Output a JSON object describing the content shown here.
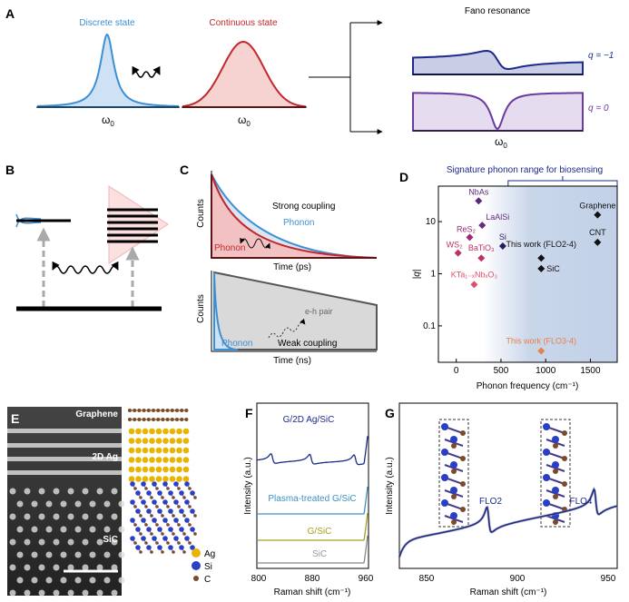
{
  "panels": {
    "a": "A",
    "b": "B",
    "c": "C",
    "d": "D",
    "e": "E",
    "f": "F",
    "g": "G"
  },
  "panel_a": {
    "discrete": "Discrete state",
    "continuous": "Continuous state",
    "fano": "Fano resonance",
    "omega": "ω",
    "omega_sub": "0",
    "q1": "q = −1",
    "q0": "q = 0"
  },
  "panel_c": {
    "strong": "Strong coupling",
    "phonon": "Phonon",
    "counts": "Counts",
    "time_ps": "Time (ps)",
    "time_ns": "Time (ns)",
    "eh": "e-h pair",
    "weak": "Weak coupling"
  },
  "panel_e": {
    "graphene": "Graphene",
    "ag": "2D Ag",
    "sic": "SiC",
    "legend": [
      "Ag",
      "Si",
      "C"
    ]
  },
  "colors": {
    "blue": "#3d8fd4",
    "red": "#c0282d",
    "navy": "#1b2a8c",
    "purple": "#6a3a9c",
    "shade": "#c9d6ea",
    "ag": "#e8b400",
    "si": "#2b3fc4",
    "c": "#7a4a2a"
  },
  "chart_data": [
    {
      "type": "scatter",
      "panel": "D",
      "title": "Signature phonon range for biosensing",
      "xlabel": "Phonon frequency (cm⁻¹)",
      "ylabel": "|q|",
      "xlim": [
        -200,
        1800
      ],
      "ylim": [
        0.02,
        48
      ],
      "yscale": "log",
      "xticks": [
        "0",
        "500",
        "1000",
        "1500"
      ],
      "yticks": [
        "0.1",
        "1",
        "10"
      ],
      "shaded_range": [
        580,
        1800
      ],
      "points": [
        {
          "label": "NbAs",
          "x": 250,
          "y": 25,
          "color": "#5a2a7a"
        },
        {
          "label": "LaAlSi",
          "x": 290,
          "y": 8.5,
          "color": "#6a2a80"
        },
        {
          "label": "ReS₂",
          "x": 150,
          "y": 5,
          "color": "#a0287a"
        },
        {
          "label": "Si",
          "x": 520,
          "y": 3.4,
          "color": "#2a1a5a"
        },
        {
          "label": "WS₂",
          "x": 20,
          "y": 2.5,
          "color": "#c0306a"
        },
        {
          "label": "BaTiO₃",
          "x": 280,
          "y": 2,
          "color": "#c0306a"
        },
        {
          "label": "KTa₁₋ₓNbₓO₃",
          "x": 200,
          "y": 0.62,
          "color": "#e0506a"
        },
        {
          "label": "This work (FLO2-4)",
          "x": 950,
          "y": 2,
          "color": "#111111"
        },
        {
          "label": "SiC",
          "x": 950,
          "y": 1.25,
          "color": "#111111"
        },
        {
          "label": "Graphene",
          "x": 1580,
          "y": 13.5,
          "color": "#111111"
        },
        {
          "label": "CNT",
          "x": 1580,
          "y": 4,
          "color": "#111111"
        },
        {
          "label": "This work (FLO3-4)",
          "x": 950,
          "y": 0.033,
          "color": "#e8804a"
        }
      ]
    },
    {
      "type": "line",
      "panel": "F",
      "xlabel": "Raman shift (cm⁻¹)",
      "ylabel": "Intensity (a.u.)",
      "xlim": [
        800,
        960
      ],
      "xticks": [
        "800",
        "880",
        "960"
      ],
      "series": [
        {
          "name": "G/2D Ag/SiC",
          "peaks": [
            822,
            878,
            942
          ],
          "color": "#1b2a8c"
        },
        {
          "name": "Plasma-treated G/SiC",
          "color": "#3d8fc4"
        },
        {
          "name": "G/SiC",
          "color": "#a0a020"
        },
        {
          "name": "SiC",
          "color": "#888888"
        }
      ]
    },
    {
      "type": "line",
      "panel": "G",
      "xlabel": "Raman shift (cm⁻¹)",
      "ylabel": "Intensity (a.u.)",
      "xlim": [
        835,
        955
      ],
      "xticks": [
        "850",
        "900",
        "950"
      ],
      "series": [
        {
          "name": "FLO2",
          "peak": 884
        },
        {
          "name": "FLO4",
          "peak": 943
        }
      ]
    }
  ]
}
